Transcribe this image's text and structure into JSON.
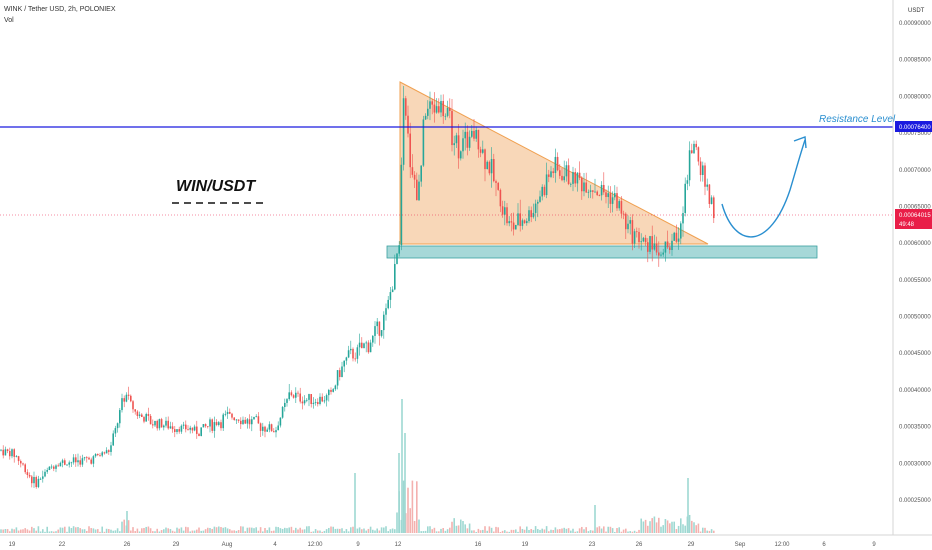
{
  "header": {
    "symbol_line": "WINK / Tether USD, 2h, POLONIEX",
    "volume_label": "Vol",
    "currency": "USDT"
  },
  "annotations": {
    "pair_title": "WIN/USDT",
    "resistance_label": "Resistance Level"
  },
  "price_axis": {
    "ticks": [
      "0.00090000",
      "0.00085000",
      "0.00080000",
      "0.00075000",
      "0.00070000",
      "0.00065000",
      "0.00060000",
      "0.00055000",
      "0.00050000",
      "0.00045000",
      "0.00040000",
      "0.00035000",
      "0.00030000",
      "0.00025000"
    ],
    "resistance_badge": "0.00076400",
    "last_price_badge": "0.00064015",
    "countdown_badge": "49:48"
  },
  "time_axis": {
    "ticks": [
      "19",
      "22",
      "26",
      "29",
      "Aug",
      "4",
      "12:00",
      "9",
      "12",
      "16",
      "19",
      "23",
      "26",
      "29",
      "Sep",
      "12:00",
      "6",
      "9"
    ]
  },
  "colors": {
    "up": "#26a69a",
    "down": "#ef5350",
    "resistance_line": "#1a1adf",
    "triangle_fill": "#f5c9a0",
    "triangle_stroke": "#f0a050",
    "support_zone": "#a6d8d8",
    "arrow": "#2a8fd0",
    "last_price": "#e91e48"
  },
  "chart_data": {
    "type": "candlestick",
    "ylim": [
      0.00023,
      0.00092
    ],
    "resistance_level": 0.000764,
    "last_price": 0.00064015,
    "support_zone": [
      0.000578,
      0.000598
    ],
    "descending_triangle": {
      "apex_price_top": 0.000825,
      "base_price": 0.0006
    },
    "x": [
      "19",
      "22",
      "26",
      "29",
      "Aug",
      "4",
      "12:00",
      "9",
      "12",
      "16",
      "19",
      "23",
      "26",
      "29"
    ],
    "close": [
      0.000315,
      0.0003,
      0.00031,
      0.000345,
      0.000365,
      0.00035,
      0.000375,
      0.000455,
      0.00079,
      0.00071,
      0.00062,
      0.00068,
      0.000605,
      0.00065
    ],
    "high": [
      0.00032,
      0.00031,
      0.00032,
      0.00041,
      0.000375,
      0.000365,
      0.0004,
      0.00051,
      0.00086,
      0.00078,
      0.0007,
      0.00071,
      0.00066,
      0.000745
    ],
    "low": [
      0.0003,
      0.000275,
      0.0003,
      0.00034,
      0.00034,
      0.000335,
      0.000355,
      0.00044,
      0.00058,
      0.00064,
      0.0006,
      0.00063,
      0.000585,
      0.0006
    ]
  }
}
